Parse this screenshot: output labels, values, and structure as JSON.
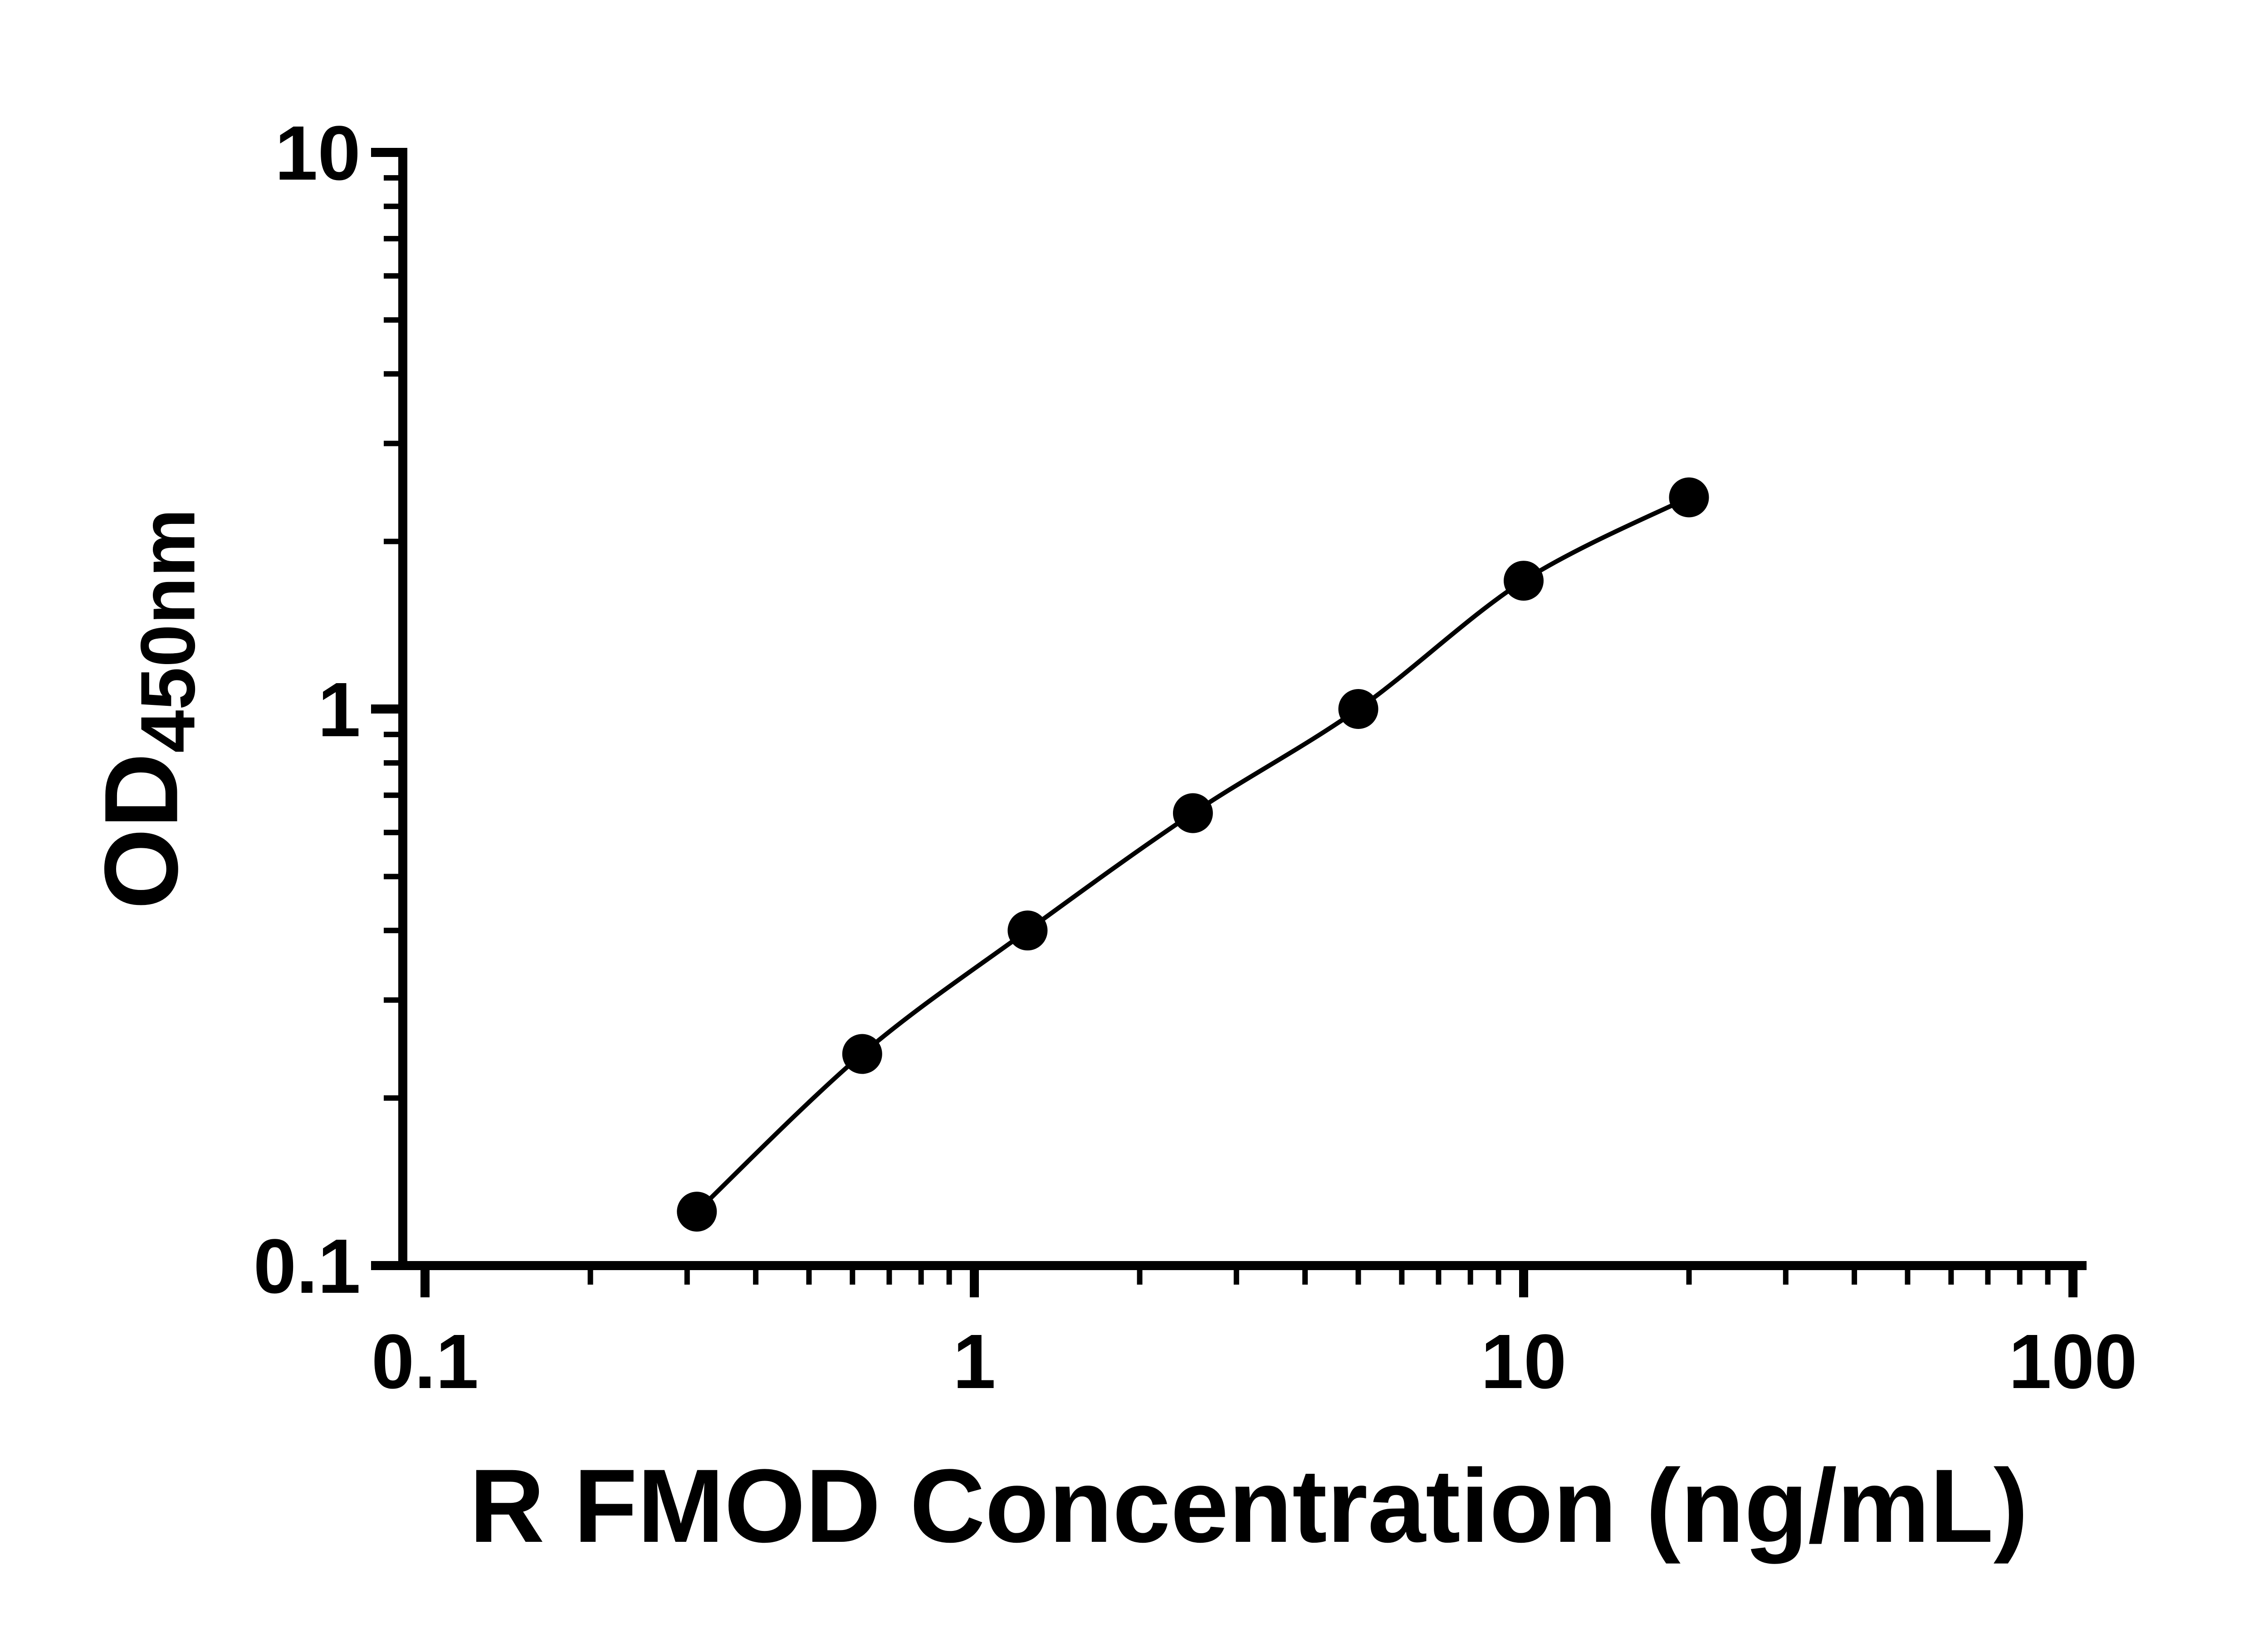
{
  "chart_data": {
    "type": "scatter",
    "title": "",
    "xlabel": "R FMOD Concentration (ng/mL)",
    "ylabel_main": "OD",
    "ylabel_sub": "450nm",
    "xscale": "log",
    "yscale": "log",
    "xlim": [
      0.1,
      100
    ],
    "ylim": [
      0.1,
      10
    ],
    "x_ticks": [
      0.1,
      1,
      10,
      100
    ],
    "x_tick_labels": [
      "0.1",
      "1",
      "10",
      "100"
    ],
    "y_ticks": [
      0.1,
      1,
      10
    ],
    "y_tick_labels": [
      "0.1",
      "1",
      "10"
    ],
    "grid": false,
    "legend": "none",
    "x": [
      0.3125,
      0.625,
      1.25,
      2.5,
      5,
      10,
      20
    ],
    "y": [
      0.125,
      0.24,
      0.4,
      0.65,
      1.0,
      1.7,
      2.4
    ],
    "connect": "smooth-curve",
    "marker": "filled-circle",
    "colors": {
      "axis": "#000000",
      "text": "#000000",
      "line": "#000000",
      "marker": "#000000",
      "background": "#ffffff"
    }
  }
}
